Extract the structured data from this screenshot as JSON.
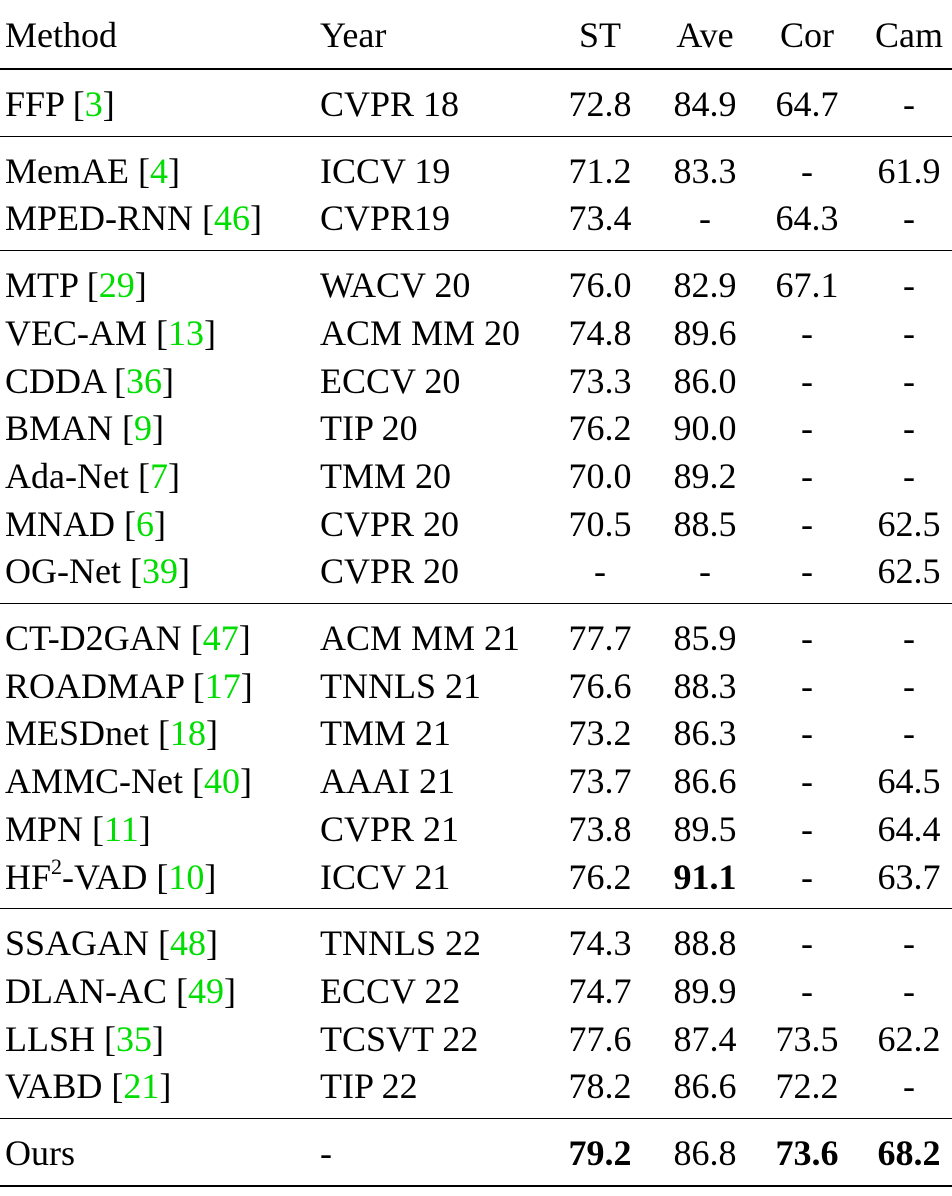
{
  "headers": {
    "method": "Method",
    "year": "Year",
    "st": "ST",
    "ave": "Ave",
    "cor": "Cor",
    "cam": "Cam"
  },
  "groups": [
    {
      "rows": [
        {
          "name": "FFP",
          "ref": "3",
          "year": "CVPR 18",
          "st": "72.8",
          "ave": "84.9",
          "cor": "64.7",
          "cam": "-"
        }
      ]
    },
    {
      "rows": [
        {
          "name": "MemAE",
          "ref": "4",
          "year": "ICCV 19",
          "st": "71.2",
          "ave": "83.3",
          "cor": "-",
          "cam": "61.9"
        },
        {
          "name": "MPED-RNN",
          "ref": "46",
          "year": "CVPR19",
          "st": "73.4",
          "ave": "-",
          "cor": "64.3",
          "cam": "-"
        }
      ]
    },
    {
      "rows": [
        {
          "name": "MTP",
          "ref": "29",
          "year": "WACV 20",
          "st": "76.0",
          "ave": "82.9",
          "cor": "67.1",
          "cam": "-"
        },
        {
          "name": "VEC-AM",
          "ref": "13",
          "year": "ACM MM 20",
          "st": "74.8",
          "ave": "89.6",
          "cor": "-",
          "cam": "-"
        },
        {
          "name": "CDDA",
          "ref": "36",
          "year": "ECCV 20",
          "st": "73.3",
          "ave": "86.0",
          "cor": "-",
          "cam": "-"
        },
        {
          "name": "BMAN",
          "ref": "9",
          "year": "TIP 20",
          "st": "76.2",
          "ave": "90.0",
          "cor": "-",
          "cam": "-"
        },
        {
          "name": "Ada-Net",
          "ref": "7",
          "year": "TMM 20",
          "st": "70.0",
          "ave": "89.2",
          "cor": "-",
          "cam": "-"
        },
        {
          "name": "MNAD",
          "ref": "6",
          "year": "CVPR 20",
          "st": "70.5",
          "ave": "88.5",
          "cor": "-",
          "cam": "62.5"
        },
        {
          "name": "OG-Net",
          "ref": "39",
          "year": "CVPR 20",
          "st": "-",
          "ave": "-",
          "cor": "-",
          "cam": "62.5"
        }
      ]
    },
    {
      "rows": [
        {
          "name": "CT-D2GAN",
          "ref": "47",
          "year": "ACM MM 21",
          "st": "77.7",
          "ave": "85.9",
          "cor": "-",
          "cam": "-"
        },
        {
          "name": "ROADMAP",
          "ref": "17",
          "year": "TNNLS 21",
          "st": "76.6",
          "ave": "88.3",
          "cor": "-",
          "cam": "-"
        },
        {
          "name": "MESDnet",
          "ref": "18",
          "year": "TMM 21",
          "st": "73.2",
          "ave": "86.3",
          "cor": "-",
          "cam": "-"
        },
        {
          "name": "AMMC-Net",
          "ref": "40",
          "year": "AAAI 21",
          "st": "73.7",
          "ave": "86.6",
          "cor": "-",
          "cam": "64.5"
        },
        {
          "name": "MPN",
          "ref": "11",
          "year": "CVPR 21",
          "st": "73.8",
          "ave": "89.5",
          "cor": "-",
          "cam": "64.4"
        },
        {
          "name": "HF",
          "sup": "2",
          "name_suffix": "-VAD",
          "ref": "10",
          "year": "ICCV 21",
          "st": "76.2",
          "ave": "91.1",
          "ave_bold": true,
          "cor": "-",
          "cam": "63.7"
        }
      ]
    },
    {
      "rows": [
        {
          "name": "SSAGAN",
          "ref": "48",
          "year": "TNNLS 22",
          "st": "74.3",
          "ave": "88.8",
          "cor": "-",
          "cam": "-"
        },
        {
          "name": "DLAN-AC",
          "ref": "49",
          "year": "ECCV 22",
          "st": "74.7",
          "ave": "89.9",
          "cor": "-",
          "cam": "-"
        },
        {
          "name": "LLSH",
          "ref": "35",
          "year": "TCSVT 22",
          "st": "77.6",
          "ave": "87.4",
          "cor": "73.5",
          "cam": "62.2"
        },
        {
          "name": "VABD",
          "ref": "21",
          "year": "TIP 22",
          "st": "78.2",
          "ave": "86.6",
          "cor": "72.2",
          "cam": "-"
        }
      ]
    },
    {
      "rows": [
        {
          "name": "Ours",
          "year": "-",
          "st": "79.2",
          "st_bold": true,
          "ave": "86.8",
          "cor": "73.6",
          "cor_bold": true,
          "cam": "68.2",
          "cam_bold": true
        }
      ]
    }
  ]
}
